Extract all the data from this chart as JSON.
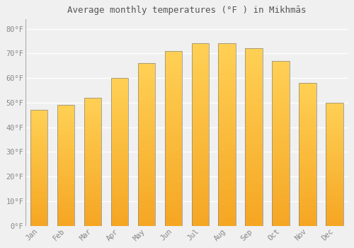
{
  "title": "Average monthly temperatures (°F ) in Mikhmās",
  "months": [
    "Jan",
    "Feb",
    "Mar",
    "Apr",
    "May",
    "Jun",
    "Jul",
    "Aug",
    "Sep",
    "Oct",
    "Nov",
    "Dec"
  ],
  "values": [
    47,
    49,
    52,
    60,
    66,
    71,
    74,
    74,
    72,
    67,
    58,
    50
  ],
  "bar_color_bottom": "#F5A623",
  "bar_color_top": "#FFD055",
  "bar_edge_color": "#888888",
  "background_color": "#f0f0f0",
  "plot_bg_color": "#f0f0f0",
  "grid_color": "#ffffff",
  "ylabel_ticks": [
    0,
    10,
    20,
    30,
    40,
    50,
    60,
    70,
    80
  ],
  "ylim": [
    0,
    84
  ],
  "tick_label_color": "#888888",
  "title_color": "#555555",
  "title_fontsize": 9,
  "tick_fontsize": 7.5,
  "font_family": "monospace"
}
